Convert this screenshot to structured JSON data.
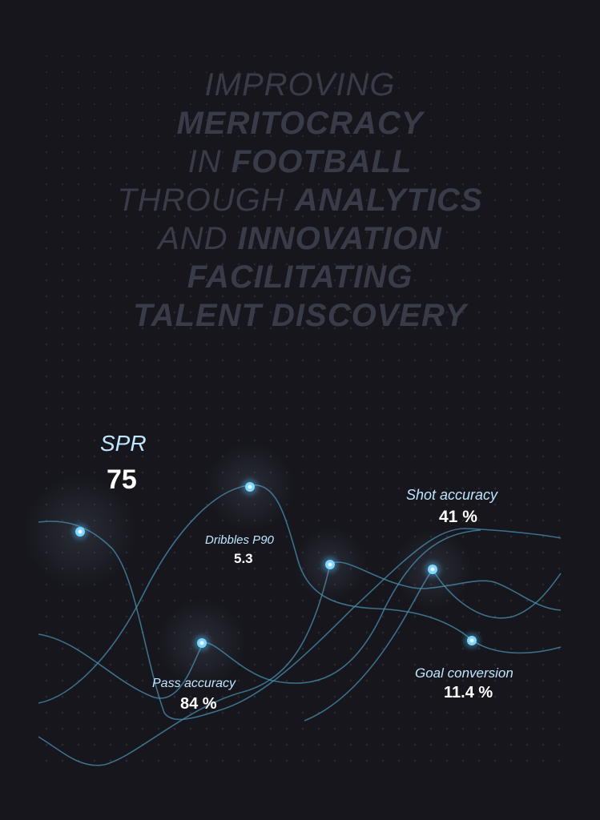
{
  "headline": {
    "lines": [
      [
        {
          "text": "IMPROVING",
          "style": "thin"
        }
      ],
      [
        {
          "text": "MERITOCRACY",
          "style": "bold"
        }
      ],
      [
        {
          "text": "IN ",
          "style": "thin"
        },
        {
          "text": "FOOTBALL",
          "style": "bold"
        }
      ],
      [
        {
          "text": "THROUGH ",
          "style": "thin"
        },
        {
          "text": "ANALYTICS",
          "style": "bold"
        }
      ],
      [
        {
          "text": "AND ",
          "style": "thin"
        },
        {
          "text": "INNOVATION",
          "style": "bold"
        }
      ],
      [
        {
          "text": "FACILITATING",
          "style": "bold"
        }
      ],
      [
        {
          "text": "TALENT DISCOVERY",
          "style": "bold"
        }
      ]
    ]
  },
  "metrics": {
    "spr": {
      "label": "SPR",
      "value": "75"
    },
    "dribbles": {
      "label": "Dribbles P90",
      "value": "5.3"
    },
    "shot_accuracy": {
      "label": "Shot accuracy",
      "value": "41 %"
    },
    "pass_accuracy": {
      "label": "Pass accuracy",
      "value": "84 %"
    },
    "goal_conversion": {
      "label": "Goal conversion",
      "value": "11.4 %"
    }
  },
  "colors": {
    "background": "#16161c",
    "headline": "#3a3b48",
    "line": "#4a8fb0",
    "node": "#4fc3f7",
    "label": "#bfe6ff",
    "value": "#ffffff"
  }
}
